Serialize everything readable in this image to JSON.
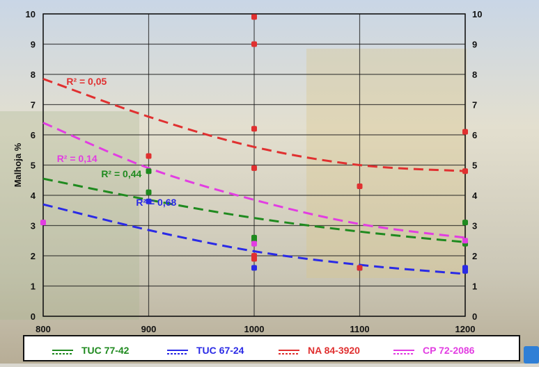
{
  "chart_data": {
    "type": "scatter",
    "title": "",
    "xlabel": "",
    "ylabel": "Malhoja %",
    "xlim": [
      800,
      1200
    ],
    "ylim": [
      0,
      10
    ],
    "x_ticks": [
      "800",
      "900",
      "1000",
      "1100",
      "1200"
    ],
    "y_ticks": [
      "0",
      "1",
      "2",
      "3",
      "4",
      "5",
      "6",
      "7",
      "8",
      "9",
      "10"
    ],
    "grid": true,
    "legend_position": "bottom",
    "series": [
      {
        "name": "TUC 77-42",
        "color": "#1f8a1f",
        "points": [
          [
            900,
            4.8
          ],
          [
            900,
            4.1
          ],
          [
            1000,
            2.6
          ],
          [
            1000,
            2.5
          ],
          [
            1200,
            3.1
          ],
          [
            1200,
            2.4
          ]
        ],
        "trend": [
          [
            800,
            4.55
          ],
          [
            900,
            3.85
          ],
          [
            1000,
            3.25
          ],
          [
            1100,
            2.8
          ],
          [
            1200,
            2.45
          ]
        ],
        "r2_label": "R² = 0,44",
        "r2_at": [
          855,
          4.6
        ]
      },
      {
        "name": "TUC 67-24",
        "color": "#2a2ae6",
        "points": [
          [
            900,
            3.8
          ],
          [
            1000,
            1.6
          ],
          [
            1100,
            1.6
          ],
          [
            1200,
            1.6
          ],
          [
            1200,
            1.5
          ]
        ],
        "trend": [
          [
            800,
            3.7
          ],
          [
            900,
            2.85
          ],
          [
            1000,
            2.15
          ],
          [
            1100,
            1.7
          ],
          [
            1200,
            1.4
          ]
        ],
        "r2_label": "R² = 0,68",
        "r2_at": [
          888,
          3.65
        ]
      },
      {
        "name": "NA 84-3920",
        "color": "#e03030",
        "points": [
          [
            900,
            5.3
          ],
          [
            1000,
            9.9
          ],
          [
            1000,
            9.0
          ],
          [
            1000,
            6.2
          ],
          [
            1000,
            4.9
          ],
          [
            1000,
            2.0
          ],
          [
            1000,
            1.9
          ],
          [
            1100,
            4.3
          ],
          [
            1100,
            1.6
          ],
          [
            1200,
            6.1
          ],
          [
            1200,
            4.8
          ]
        ],
        "trend": [
          [
            800,
            7.85
          ],
          [
            900,
            6.6
          ],
          [
            1000,
            5.6
          ],
          [
            1100,
            5.0
          ],
          [
            1200,
            4.8
          ]
        ],
        "r2_label": "R² = 0,05",
        "r2_at": [
          822,
          7.65
        ]
      },
      {
        "name": "CP 72-2086",
        "color": "#e23de2",
        "points": [
          [
            800,
            3.1
          ],
          [
            1000,
            2.4
          ],
          [
            1200,
            2.5
          ]
        ],
        "trend": [
          [
            800,
            6.4
          ],
          [
            900,
            4.9
          ],
          [
            1000,
            3.85
          ],
          [
            1100,
            3.05
          ],
          [
            1200,
            2.6
          ]
        ],
        "r2_label": "R² = 0,14",
        "r2_at": [
          813,
          5.1
        ]
      }
    ]
  }
}
